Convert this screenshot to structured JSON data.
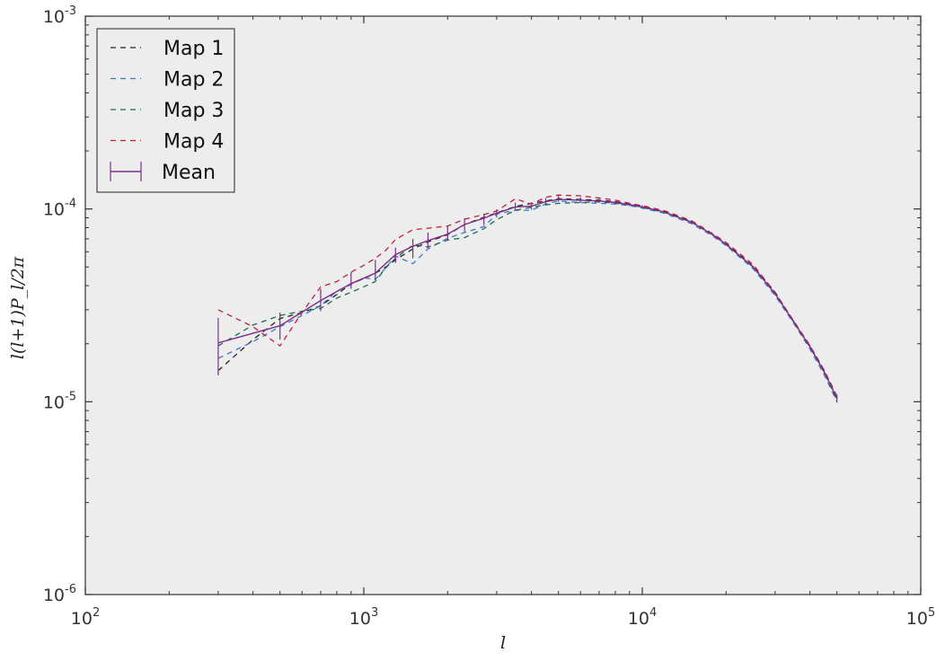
{
  "chart_data": {
    "type": "line",
    "xscale": "log",
    "yscale": "log",
    "xlim": [
      100,
      100000
    ],
    "ylim": [
      1e-06,
      0.001
    ],
    "xlabel": "l",
    "ylabel": "l(l+1)P_l/2π",
    "x_ticks": [
      {
        "base": "10",
        "exp": "2",
        "value": 100
      },
      {
        "base": "10",
        "exp": "3",
        "value": 1000
      },
      {
        "base": "10",
        "exp": "4",
        "value": 10000
      },
      {
        "base": "10",
        "exp": "5",
        "value": 100000
      }
    ],
    "y_ticks": [
      {
        "base": "10",
        "exp": "-6",
        "value": 1e-06
      },
      {
        "base": "10",
        "exp": "-5",
        "value": 1e-05
      },
      {
        "base": "10",
        "exp": "-4",
        "value": 0.0001
      },
      {
        "base": "10",
        "exp": "-3",
        "value": 0.001
      }
    ],
    "grid": false,
    "background": "#ededed",
    "legend_position": "top-left",
    "series": [
      {
        "name": "Map 1",
        "style": "dashed",
        "color": "#222222",
        "x": [
          300,
          400,
          500,
          600,
          700,
          800,
          900,
          1000,
          1100,
          1200,
          1300,
          1500,
          1700,
          2000,
          2300,
          2700,
          3000,
          3500,
          4000,
          4500,
          5000,
          6000,
          7000,
          8000,
          9000,
          10000,
          12000,
          15000,
          18000,
          20000,
          25000,
          30000,
          35000,
          40000,
          45000,
          50000
        ],
        "y": [
          1.45e-05,
          2.1e-05,
          2.7e-05,
          2.9e-05,
          3.15e-05,
          3.6e-05,
          4.1e-05,
          4.35e-05,
          4.65e-05,
          5e-05,
          5.45e-05,
          6.2e-05,
          6.75e-05,
          7.35e-05,
          8.3e-05,
          9.05e-05,
          9.55e-05,
          0.000103,
          0.000107,
          0.00011,
          0.000113,
          0.000112,
          0.000111,
          0.000109,
          0.000106,
          0.0001035,
          9.7e-05,
          8.6e-05,
          7.35e-05,
          6.6e-05,
          5.05e-05,
          3.7e-05,
          2.6e-05,
          1.95e-05,
          1.45e-05,
          1.05e-05
        ]
      },
      {
        "name": "Map 2",
        "style": "dashed",
        "color": "#3c78c8",
        "x": [
          300,
          400,
          500,
          600,
          700,
          800,
          900,
          1000,
          1100,
          1200,
          1300,
          1500,
          1700,
          2000,
          2300,
          2700,
          3000,
          3500,
          4000,
          4500,
          5000,
          6000,
          7000,
          8000,
          9000,
          10000,
          12000,
          15000,
          18000,
          20000,
          25000,
          30000,
          35000,
          40000,
          45000,
          50000
        ],
        "y": [
          1.68e-05,
          2.05e-05,
          2.45e-05,
          2.8e-05,
          3.15e-05,
          3.75e-05,
          4.05e-05,
          4.4e-05,
          4.3e-05,
          4.95e-05,
          5.7e-05,
          5.2e-05,
          6.2e-05,
          7.05e-05,
          7.55e-05,
          8.1e-05,
          9.4e-05,
          9.85e-05,
          9.85e-05,
          0.000106,
          0.00011,
          0.000108,
          0.000107,
          0.000106,
          0.000104,
          0.000101,
          9.5e-05,
          8.4e-05,
          7.2e-05,
          6.45e-05,
          4.9e-05,
          3.55e-05,
          2.55e-05,
          1.88e-05,
          1.38e-05,
          1e-05
        ]
      },
      {
        "name": "Map 3",
        "style": "dashed",
        "color": "#1a6b50",
        "x": [
          300,
          400,
          500,
          600,
          700,
          800,
          900,
          1000,
          1100,
          1200,
          1300,
          1500,
          1700,
          2000,
          2300,
          2700,
          3000,
          3500,
          4000,
          4500,
          5000,
          6000,
          7000,
          8000,
          9000,
          10000,
          12000,
          15000,
          18000,
          20000,
          25000,
          30000,
          35000,
          40000,
          45000,
          50000
        ],
        "y": [
          1.95e-05,
          2.5e-05,
          2.8e-05,
          2.95e-05,
          3.05e-05,
          3.45e-05,
          3.7e-05,
          3.95e-05,
          4.2e-05,
          4.95e-05,
          5.55e-05,
          6.5e-05,
          6.35e-05,
          6.9e-05,
          7.1e-05,
          7.9e-05,
          8.8e-05,
          9.85e-05,
          0.000102,
          0.000105,
          0.000107,
          0.000108,
          0.000109,
          0.000107,
          0.000105,
          0.000102,
          9.6e-05,
          8.55e-05,
          7.3e-05,
          6.55e-05,
          5e-05,
          3.62e-05,
          2.58e-05,
          1.92e-05,
          1.42e-05,
          1.02e-05
        ]
      },
      {
        "name": "Map 4",
        "style": "dashed",
        "color": "#c0203a",
        "x": [
          300,
          400,
          500,
          600,
          700,
          800,
          900,
          1000,
          1100,
          1200,
          1300,
          1500,
          1700,
          2000,
          2300,
          2700,
          3000,
          3500,
          4000,
          4500,
          5000,
          6000,
          7000,
          8000,
          9000,
          10000,
          12000,
          15000,
          18000,
          20000,
          25000,
          30000,
          35000,
          40000,
          45000,
          50000
        ],
        "y": [
          3e-05,
          2.45e-05,
          1.95e-05,
          2.9e-05,
          3.95e-05,
          4.2e-05,
          4.7e-05,
          5.1e-05,
          5.55e-05,
          6.1e-05,
          6.95e-05,
          7.8e-05,
          7.95e-05,
          8.15e-05,
          8.85e-05,
          9.35e-05,
          9.75e-05,
          0.000113,
          0.000106,
          0.000115,
          0.000118,
          0.000117,
          0.000114,
          0.000111,
          0.000107,
          0.000104,
          9.8e-05,
          8.7e-05,
          7.4e-05,
          6.7e-05,
          5.15e-05,
          3.68e-05,
          2.62e-05,
          1.96e-05,
          1.46e-05,
          1.07e-05
        ]
      },
      {
        "name": "Mean",
        "style": "solid",
        "color": "#7b2f8a",
        "errorbars": true,
        "x": [
          300,
          500,
          700,
          900,
          1100,
          1300,
          1500,
          1700,
          2000,
          2300,
          2700,
          3000,
          3500,
          4000,
          4500,
          5000,
          6000,
          7000,
          8000,
          9000,
          10000,
          12000,
          15000,
          18000,
          20000,
          25000,
          30000,
          35000,
          40000,
          45000,
          50000
        ],
        "y": [
          2.02e-05,
          2.48e-05,
          3.35e-05,
          4.1e-05,
          4.65e-05,
          5.8e-05,
          6.4e-05,
          6.85e-05,
          7.4e-05,
          8.3e-05,
          8.95e-05,
          9.5e-05,
          0.0001025,
          0.0001035,
          0.000109,
          0.000112,
          0.000111,
          0.00011,
          0.000108,
          0.0001055,
          0.0001025,
          9.65e-05,
          8.55e-05,
          7.32e-05,
          6.55e-05,
          5e-05,
          3.63e-05,
          2.59e-05,
          1.93e-05,
          1.43e-05,
          1.04e-05
        ],
        "yerr_low": [
          1.37e-05,
          2.1e-05,
          2.95e-05,
          3.85e-05,
          4.28e-05,
          5.25e-05,
          5.55e-05,
          6.25e-05,
          6.9e-05,
          7.65e-05,
          8.25e-05,
          9.05e-05,
          9.85e-05,
          9.9e-05,
          0.0001055,
          0.000109,
          0.000108,
          0.0001075,
          0.000106,
          0.0001035,
          0.0001005,
          9.45e-05,
          8.42e-05,
          7.22e-05,
          6.45e-05,
          4.93e-05,
          3.57e-05,
          2.55e-05,
          1.9e-05,
          1.39e-05,
          9.9e-06
        ],
        "yerr_high": [
          2.72e-05,
          2.9e-05,
          3.85e-05,
          4.7e-05,
          5.45e-05,
          6.3e-05,
          7e-05,
          7.55e-05,
          8.1e-05,
          8.95e-05,
          9.45e-05,
          9.95e-05,
          0.000108,
          0.000108,
          0.000114,
          0.000117,
          0.000115,
          0.000113,
          0.00011,
          0.0001075,
          0.0001045,
          9.85e-05,
          8.68e-05,
          7.42e-05,
          6.65e-05,
          5.07e-05,
          3.69e-05,
          2.64e-05,
          1.97e-05,
          1.47e-05,
          1.09e-05
        ]
      }
    ]
  }
}
